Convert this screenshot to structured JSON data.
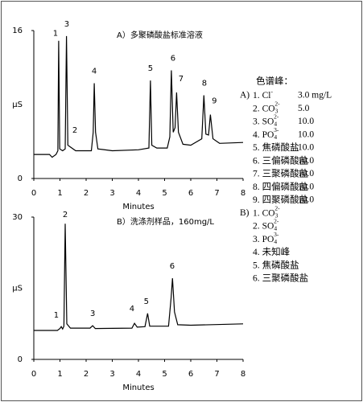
{
  "chart_data": [
    {
      "type": "line",
      "title": "A）多聚磷酸盐标准溶液",
      "xlabel": "Minutes",
      "ylabel": "µS",
      "xlim": [
        0,
        8
      ],
      "xticks": [
        0,
        1,
        2,
        3,
        4,
        5,
        6,
        7,
        8
      ],
      "ylim": [
        0,
        16
      ],
      "yticks": [
        0,
        16
      ],
      "x": [
        0,
        0.6,
        0.7,
        0.85,
        0.92,
        0.95,
        0.99,
        1.1,
        1.2,
        1.25,
        1.3,
        1.4,
        1.6,
        2.2,
        2.27,
        2.31,
        2.36,
        2.45,
        3,
        4,
        4.4,
        4.46,
        4.51,
        4.7,
        5.1,
        5.2,
        5.26,
        5.33,
        5.4,
        5.46,
        5.53,
        5.7,
        6,
        6.42,
        6.5,
        6.58,
        6.68,
        6.75,
        6.85,
        7.1,
        8
      ],
      "series": [
        {
          "color": "#000000",
          "values": [
            2.6,
            2.6,
            2.3,
            2.6,
            3,
            14.9,
            3.2,
            3.0,
            3.2,
            15.4,
            3.6,
            3.4,
            3.0,
            3.0,
            5,
            10.3,
            5,
            3.2,
            3.0,
            3.1,
            3.3,
            10.6,
            3.6,
            3.3,
            3.3,
            4.5,
            11.7,
            5,
            5.5,
            9.3,
            5,
            3.7,
            3.6,
            4.3,
            9.0,
            4.8,
            4.7,
            6.9,
            4.3,
            3.8,
            3.9
          ]
        }
      ],
      "annotations": [
        {
          "text": "1",
          "x": 0.83,
          "y": 15.7
        },
        {
          "text": "3",
          "x": 1.26,
          "y": 16.7
        },
        {
          "text": "2",
          "x": 1.57,
          "y": 5.2
        },
        {
          "text": "4",
          "x": 2.31,
          "y": 11.6
        },
        {
          "text": "5",
          "x": 4.46,
          "y": 11.9
        },
        {
          "text": "6",
          "x": 5.32,
          "y": 13.0
        },
        {
          "text": "7",
          "x": 5.63,
          "y": 10.8
        },
        {
          "text": "8",
          "x": 6.52,
          "y": 10.3
        },
        {
          "text": "9",
          "x": 6.9,
          "y": 8.4
        }
      ]
    },
    {
      "type": "line",
      "title": "B）洗涤剂样品，160mg/L",
      "xlabel": "Minutes",
      "ylabel": "µS",
      "xlim": [
        0,
        8
      ],
      "xticks": [
        0,
        1,
        2,
        3,
        4,
        5,
        6,
        7,
        8
      ],
      "ylim": [
        0,
        30
      ],
      "yticks": [
        0,
        30
      ],
      "x": [
        0,
        0.9,
        1.0,
        1.05,
        1.1,
        1.15,
        1.2,
        1.26,
        1.4,
        2.15,
        2.25,
        2.35,
        3.75,
        3.85,
        3.95,
        4.25,
        4.35,
        4.43,
        5.15,
        5.25,
        5.3,
        5.38,
        5.5,
        6,
        8
      ],
      "series": [
        {
          "color": "#000000",
          "values": [
            6.1,
            6.1,
            6.5,
            6.9,
            6.4,
            7,
            28.6,
            7.5,
            6.6,
            6.6,
            7.1,
            6.5,
            6.6,
            7.6,
            6.8,
            6.9,
            9.7,
            7.0,
            7.0,
            13,
            17.1,
            10,
            7.3,
            7.2,
            7.5
          ]
        }
      ],
      "annotations": [
        {
          "text": "1",
          "x": 0.86,
          "y": 9.3
        },
        {
          "text": "2",
          "x": 1.2,
          "y": 30.5
        },
        {
          "text": "3",
          "x": 2.25,
          "y": 9.7
        },
        {
          "text": "4",
          "x": 3.75,
          "y": 10.7
        },
        {
          "text": "5",
          "x": 4.3,
          "y": 12.2
        },
        {
          "text": "6",
          "x": 5.29,
          "y": 19.7
        }
      ]
    }
  ],
  "peak_list": {
    "heading": "色谱峰：",
    "groups": [
      {
        "label": "A)",
        "items": [
          {
            "number": "1.",
            "name": "Cl",
            "sup": "-",
            "conc": "3.0 mg/L"
          },
          {
            "number": "2.",
            "name": "CO",
            "sub": "3",
            "sup": "2-",
            "conc": "5.0"
          },
          {
            "number": "3.",
            "name": "SO",
            "sub": "4",
            "sup": "2-",
            "conc": "10.0"
          },
          {
            "number": "4.",
            "name": "PO",
            "sub": "4",
            "sup": "3-",
            "conc": "10.0"
          },
          {
            "number": "5.",
            "name": "焦磷酸盐",
            "conc": "10.0"
          },
          {
            "number": "6.",
            "name": "三偏磷酸盐",
            "conc": "10.0"
          },
          {
            "number": "7.",
            "name": "三聚磷酸盐",
            "conc": "10.0"
          },
          {
            "number": "8.",
            "name": "四偏磷酸盐",
            "conc": "10.0"
          },
          {
            "number": "9.",
            "name": "四聚磷酸盐",
            "conc": "10.0"
          }
        ]
      },
      {
        "label": "B)",
        "items": [
          {
            "number": "1.",
            "name": "CO",
            "sub": "3",
            "sup": "2-"
          },
          {
            "number": "2.",
            "name": "SO",
            "sub": "4",
            "sup": "2-"
          },
          {
            "number": "3.",
            "name": "PO",
            "sub": "4",
            "sup": "3-"
          },
          {
            "number": "4.",
            "name": "未知峰"
          },
          {
            "number": "5.",
            "name": "焦磷酸盐"
          },
          {
            "number": "6.",
            "name": "三聚磷酸盐"
          }
        ]
      }
    ]
  }
}
